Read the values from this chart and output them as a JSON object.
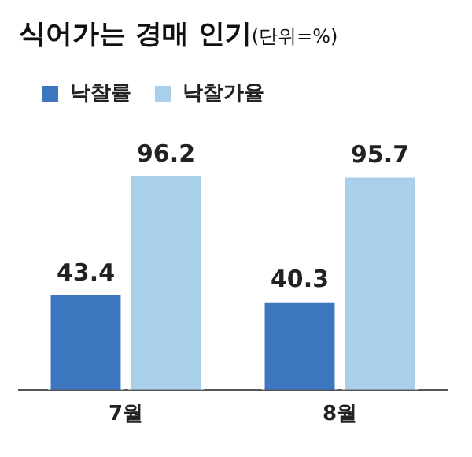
{
  "chart_data": {
    "type": "bar",
    "title": "식어가는 경매 인기",
    "subtitle": "(단위=%)",
    "categories": [
      "7월",
      "8월"
    ],
    "series": [
      {
        "name": "낙찰률",
        "color": "#3b76bf",
        "values": [
          43.4,
          40.3
        ]
      },
      {
        "name": "낙찰가율",
        "color": "#a9cfea",
        "values": [
          96.2,
          95.7
        ]
      }
    ],
    "tick_labels": "x",
    "data_labels": true,
    "grid": false,
    "legend": "top left"
  }
}
